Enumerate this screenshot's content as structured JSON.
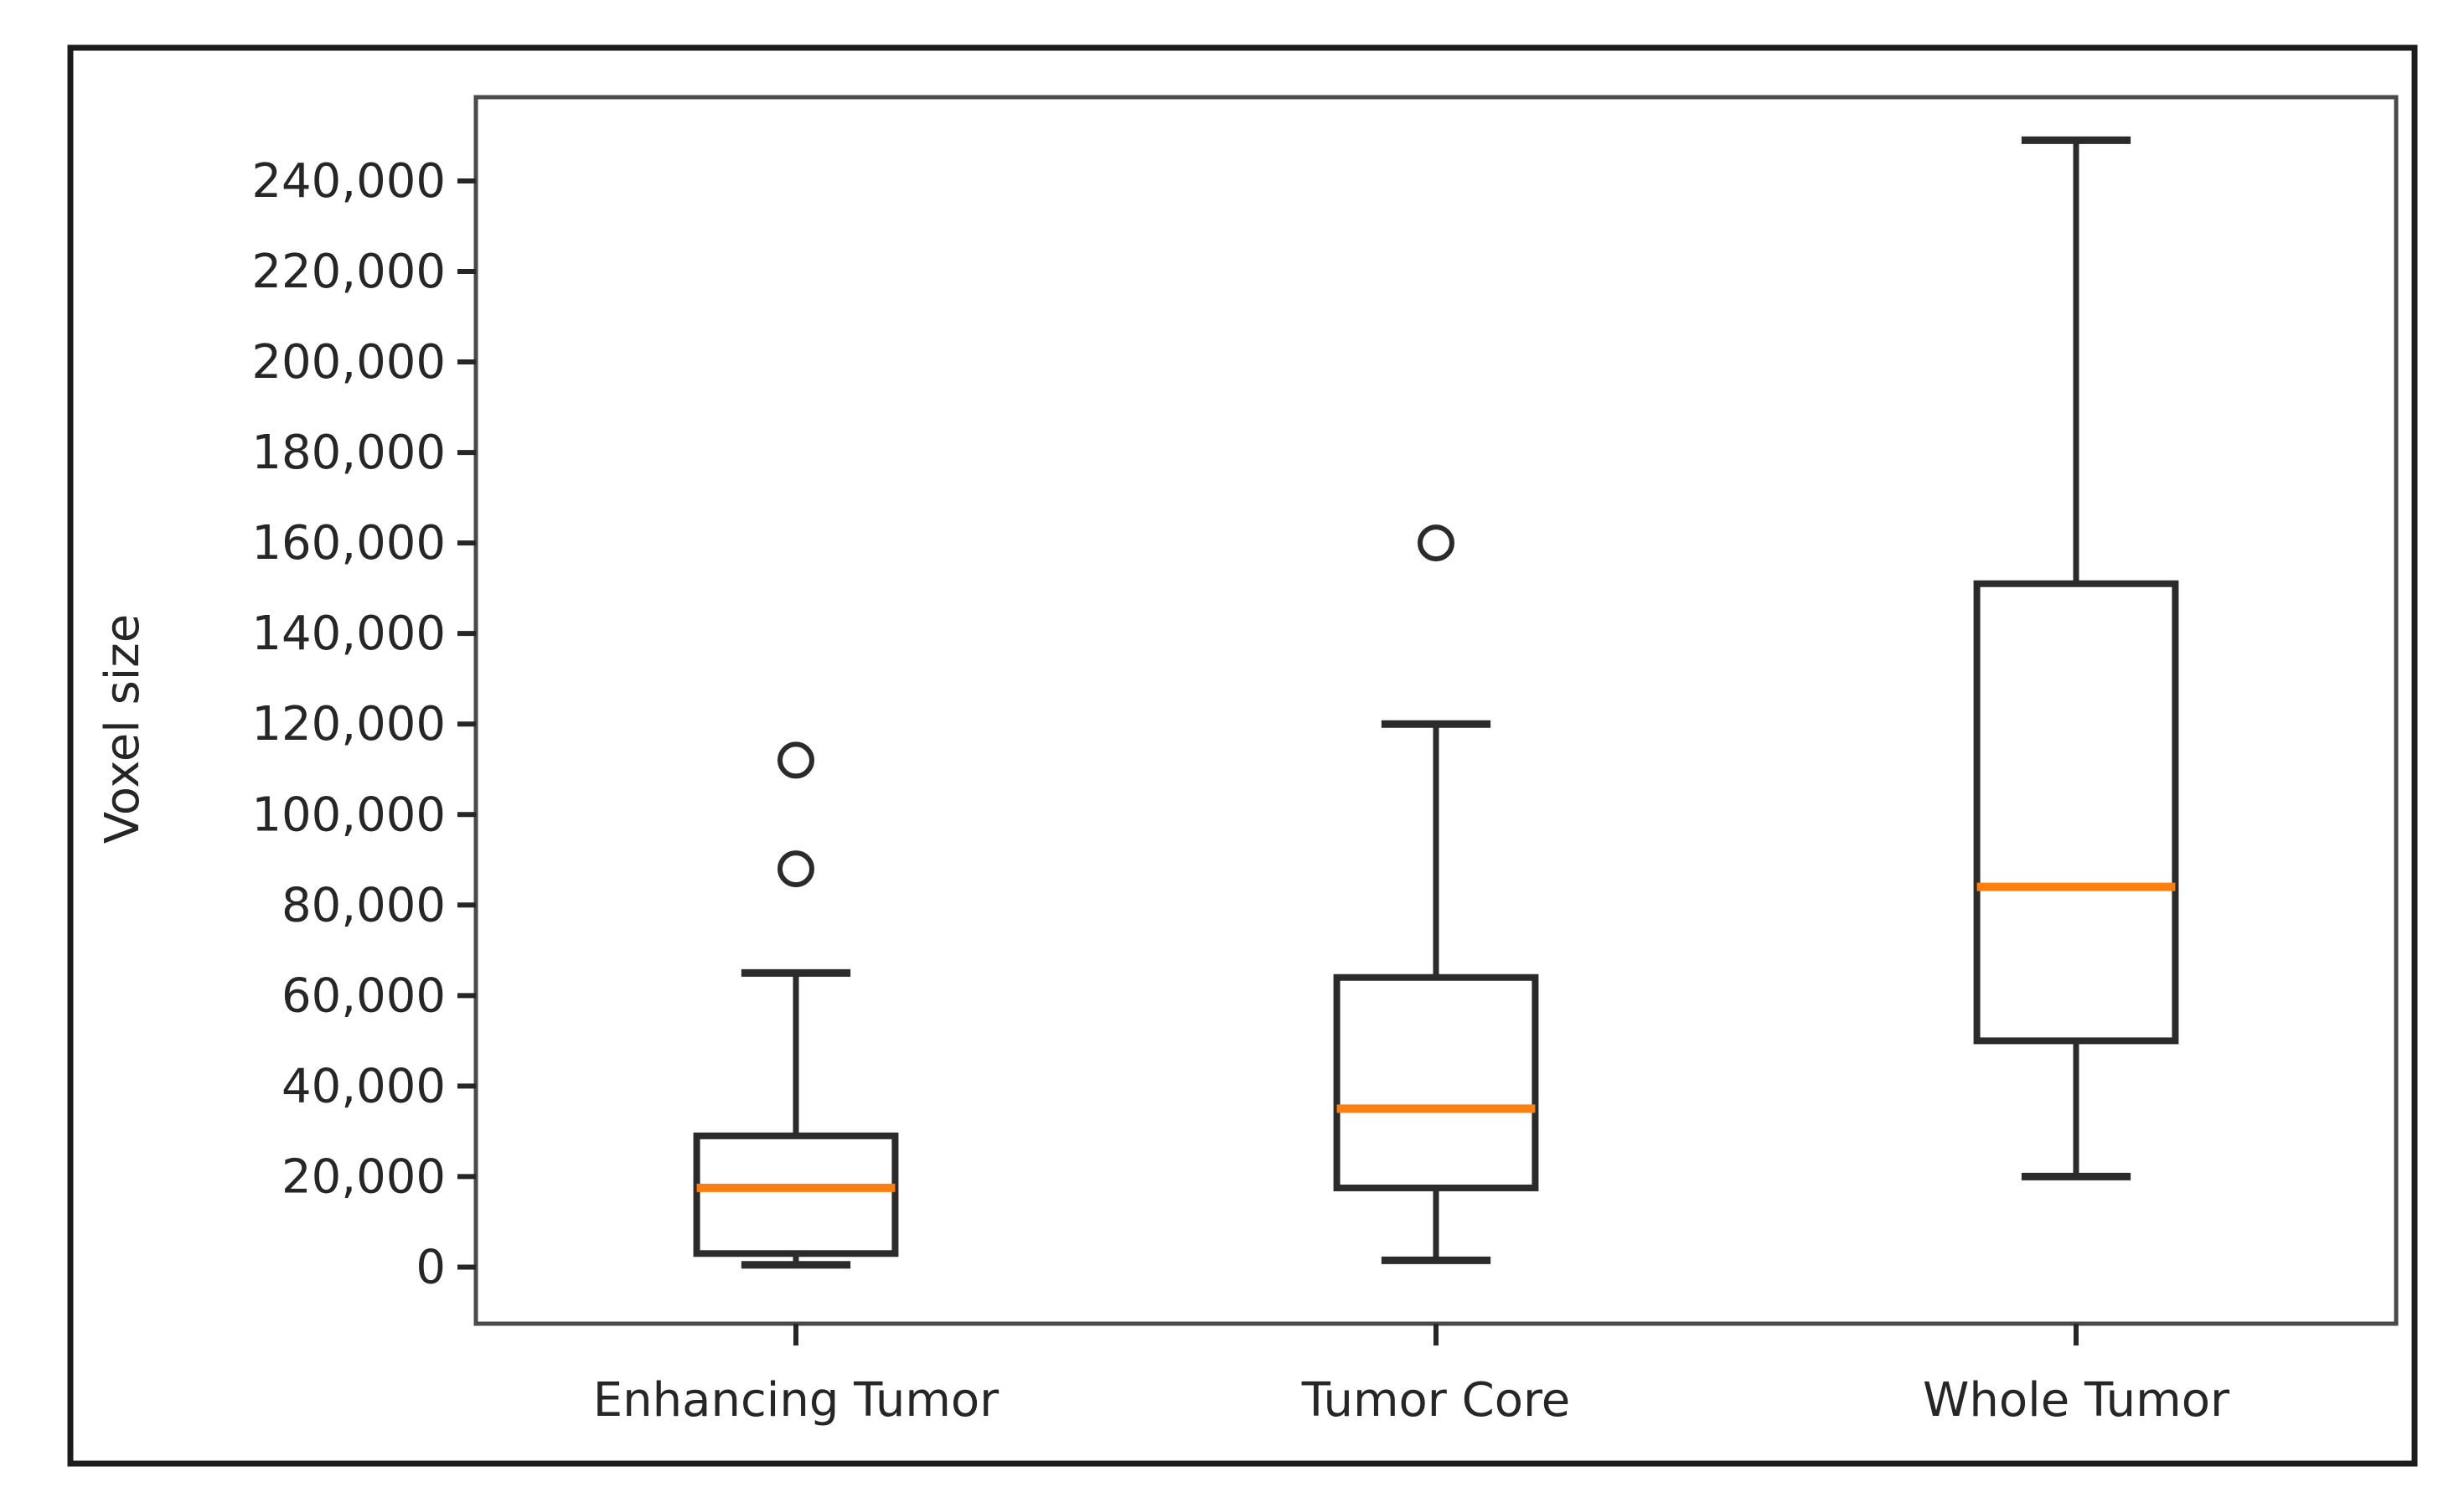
{
  "figure": {
    "background": "#ffffff",
    "border_color": "#1c1c1c"
  },
  "chart_data": {
    "type": "boxplot",
    "title": "",
    "xlabel": "",
    "ylabel": "Voxel size",
    "categories": [
      "Enhancing Tumor",
      "Tumor Core",
      "Whole Tumor"
    ],
    "yticks": [
      0,
      20000,
      40000,
      60000,
      80000,
      100000,
      120000,
      140000,
      160000,
      180000,
      200000,
      220000,
      240000
    ],
    "ytick_labels": [
      "0",
      "20,000",
      "40,000",
      "60,000",
      "80,000",
      "100,000",
      "120,000",
      "140,000",
      "160,000",
      "180,000",
      "200,000",
      "220,000",
      "240,000"
    ],
    "ylim": [
      -12500,
      258500
    ],
    "grid": false,
    "legend_position": "none",
    "series": [
      {
        "label": "Enhancing Tumor",
        "whisker_low": 500,
        "q1": 3000,
        "median": 17500,
        "q3": 29000,
        "whisker_high": 65000,
        "outliers": [
          88000,
          112000
        ]
      },
      {
        "label": "Tumor Core",
        "whisker_low": 1500,
        "q1": 17500,
        "median": 35000,
        "q3": 64000,
        "whisker_high": 120000,
        "outliers": [
          160000
        ]
      },
      {
        "label": "Whole Tumor",
        "whisker_low": 20000,
        "q1": 50000,
        "median": 84000,
        "q3": 151000,
        "whisker_high": 249000,
        "outliers": []
      }
    ],
    "colors": {
      "median": "#ff7f0e",
      "box_line": "#2b2b2b",
      "whisker_line": "#2b2b2b",
      "axis_frame": "#4a4a4a",
      "tick_text": "#262626"
    }
  }
}
